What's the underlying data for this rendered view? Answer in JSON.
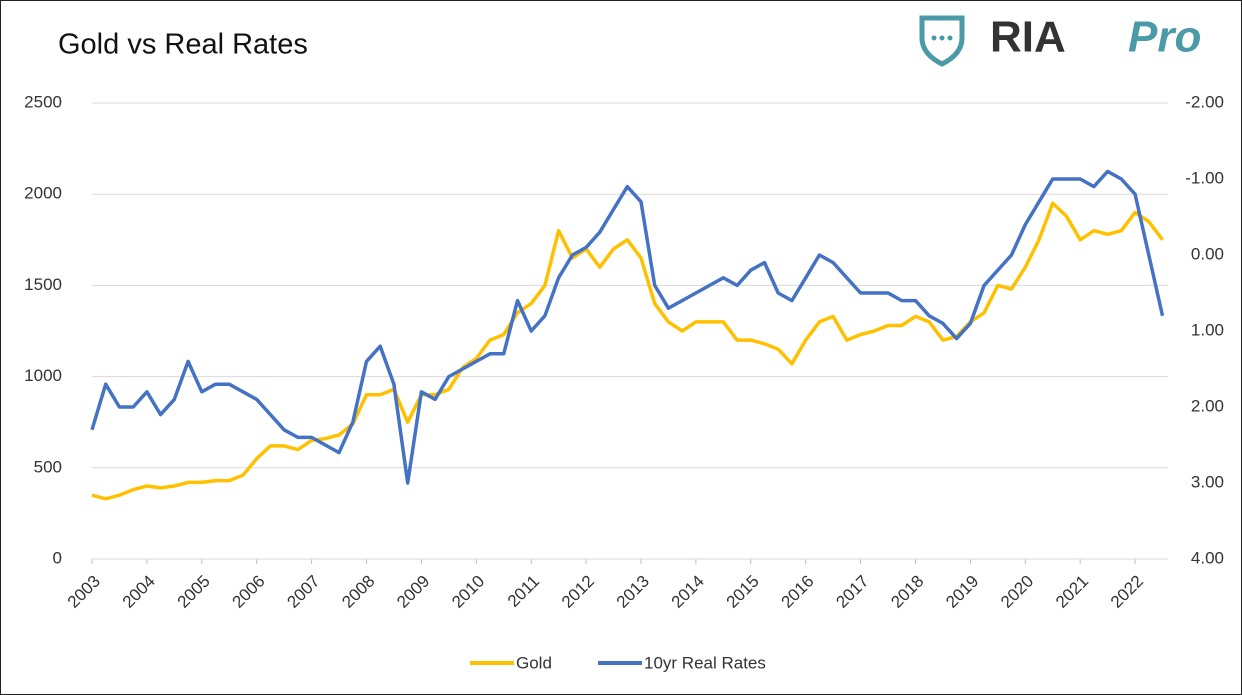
{
  "chart_data": {
    "type": "line",
    "title": "Gold vs Real Rates",
    "logo": {
      "left": "RIA",
      "right": "Pro"
    },
    "x": [
      2003,
      2003.25,
      2003.5,
      2003.75,
      2004,
      2004.25,
      2004.5,
      2004.75,
      2005,
      2005.25,
      2005.5,
      2005.75,
      2006,
      2006.25,
      2006.5,
      2006.75,
      2007,
      2007.25,
      2007.5,
      2007.75,
      2008,
      2008.25,
      2008.5,
      2008.75,
      2009,
      2009.25,
      2009.5,
      2009.75,
      2010,
      2010.25,
      2010.5,
      2010.75,
      2011,
      2011.25,
      2011.5,
      2011.75,
      2012,
      2012.25,
      2012.5,
      2012.75,
      2013,
      2013.25,
      2013.5,
      2013.75,
      2014,
      2014.25,
      2014.5,
      2014.75,
      2015,
      2015.25,
      2015.5,
      2015.75,
      2016,
      2016.25,
      2016.5,
      2016.75,
      2017,
      2017.25,
      2017.5,
      2017.75,
      2018,
      2018.25,
      2018.5,
      2018.75,
      2019,
      2019.25,
      2019.5,
      2019.75,
      2020,
      2020.25,
      2020.5,
      2020.75,
      2021,
      2021.25,
      2021.5,
      2021.75,
      2022,
      2022.25,
      2022.5
    ],
    "series": [
      {
        "name": "Gold",
        "color": "#ffc000",
        "axis": "y",
        "values": [
          350,
          330,
          350,
          380,
          400,
          390,
          400,
          420,
          420,
          430,
          430,
          460,
          550,
          620,
          620,
          600,
          650,
          660,
          680,
          740,
          900,
          900,
          930,
          750,
          900,
          900,
          930,
          1050,
          1100,
          1200,
          1230,
          1350,
          1400,
          1500,
          1800,
          1650,
          1700,
          1600,
          1700,
          1750,
          1650,
          1400,
          1300,
          1250,
          1300,
          1300,
          1300,
          1200,
          1200,
          1180,
          1150,
          1070,
          1200,
          1300,
          1330,
          1200,
          1230,
          1250,
          1280,
          1280,
          1330,
          1300,
          1200,
          1220,
          1300,
          1350,
          1500,
          1480,
          1600,
          1750,
          1950,
          1880,
          1750,
          1800,
          1780,
          1800,
          1900,
          1850,
          1750
        ]
      },
      {
        "name": "10yr Real Rates",
        "color": "#4472c4",
        "axis": "y2",
        "values": [
          2.3,
          1.7,
          2.0,
          2.0,
          1.8,
          2.1,
          1.9,
          1.4,
          1.8,
          1.7,
          1.7,
          1.8,
          1.9,
          2.1,
          2.3,
          2.4,
          2.4,
          2.5,
          2.6,
          2.2,
          1.4,
          1.2,
          1.7,
          3.0,
          1.8,
          1.9,
          1.6,
          1.5,
          1.4,
          1.3,
          1.3,
          0.6,
          1.0,
          0.8,
          0.3,
          0.0,
          -0.1,
          -0.3,
          -0.6,
          -0.9,
          -0.7,
          0.4,
          0.7,
          0.6,
          0.5,
          0.4,
          0.3,
          0.4,
          0.2,
          0.1,
          0.5,
          0.6,
          0.3,
          0.0,
          0.1,
          0.3,
          0.5,
          0.5,
          0.5,
          0.6,
          0.6,
          0.8,
          0.9,
          1.1,
          0.9,
          0.4,
          0.2,
          0.0,
          -0.4,
          -0.7,
          -1.0,
          -1.0,
          -1.0,
          -0.9,
          -1.1,
          -1.0,
          -0.8,
          0.0,
          0.8
        ]
      }
    ],
    "xlim": [
      2003,
      2022.6
    ],
    "xticks": [
      2003,
      2004,
      2005,
      2006,
      2007,
      2008,
      2009,
      2010,
      2011,
      2012,
      2013,
      2014,
      2015,
      2016,
      2017,
      2018,
      2019,
      2020,
      2021,
      2022
    ],
    "ylim": [
      0,
      2500
    ],
    "yticks": [
      0,
      500,
      1000,
      1500,
      2000,
      2500
    ],
    "y2lim": [
      4,
      -2
    ],
    "y2ticks": [
      {
        "value": 4,
        "label": "4.00"
      },
      {
        "value": 3,
        "label": "3.00"
      },
      {
        "value": 2,
        "label": "2.00"
      },
      {
        "value": 1,
        "label": "1.00"
      },
      {
        "value": 0,
        "label": "0.00"
      },
      {
        "value": -1,
        "label": "-1.00"
      },
      {
        "value": -2,
        "label": "-2.00"
      }
    ],
    "grid": true,
    "legend": "bottom"
  }
}
